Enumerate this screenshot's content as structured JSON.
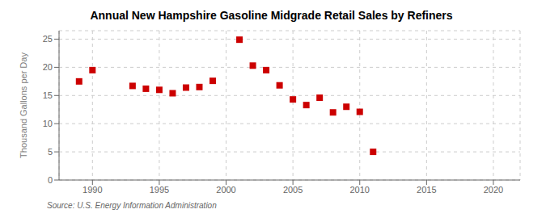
{
  "chart_data": {
    "type": "scatter",
    "title": "Annual New Hampshire Gasoline Midgrade Retail Sales by Refiners",
    "ylabel": "Thousand Gallons per Day",
    "source": "Source: U.S. Energy Information Administration",
    "x": [
      1989,
      1990,
      1993,
      1994,
      1995,
      1996,
      1997,
      1998,
      1999,
      2001,
      2002,
      2003,
      2004,
      2005,
      2006,
      2007,
      2008,
      2009,
      2010,
      2011
    ],
    "values": [
      17.5,
      19.5,
      16.7,
      16.2,
      16.0,
      15.4,
      16.4,
      16.5,
      17.6,
      24.9,
      20.3,
      19.5,
      16.8,
      14.3,
      13.3,
      14.6,
      12.0,
      13.0,
      12.1,
      5.0
    ],
    "color": "#cc0000",
    "marker": "square",
    "xlim": [
      1987.5,
      2022
    ],
    "ylim": [
      0,
      26.5
    ],
    "xticks": [
      1990,
      1995,
      2000,
      2005,
      2010,
      2015,
      2020
    ],
    "yticks": [
      0,
      5,
      10,
      15,
      20,
      25
    ],
    "grid": true
  }
}
